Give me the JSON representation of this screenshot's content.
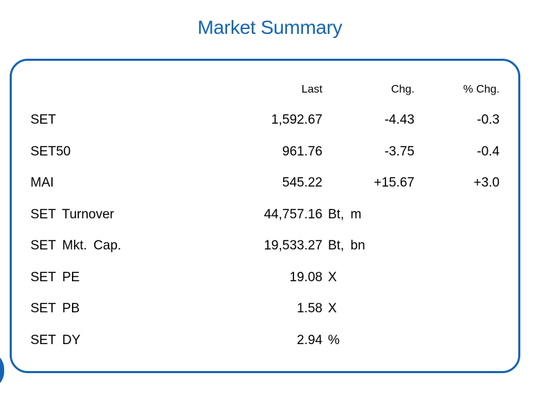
{
  "title": "Market Summary",
  "colors": {
    "accent": "#1565b0"
  },
  "table": {
    "headers": {
      "last": "Last",
      "chg": "Chg.",
      "pct_chg": "% Chg."
    },
    "index_rows": [
      {
        "label": "SET",
        "last": "1,592.67",
        "chg": "-4.43",
        "pct_chg": "-0.3"
      },
      {
        "label": "SET50",
        "last": "961.76",
        "chg": "-3.75",
        "pct_chg": "-0.4"
      },
      {
        "label": "MAI",
        "last": "545.22",
        "chg": "+15.67",
        "pct_chg": "+3.0"
      }
    ],
    "stat_rows": [
      {
        "label": "SET Turnover",
        "value": "44,757.16",
        "unit": "Bt, m"
      },
      {
        "label": "SET Mkt. Cap.",
        "value": "19,533.27",
        "unit": "Bt, bn"
      },
      {
        "label": "SET PE",
        "value": "19.08",
        "unit": "X"
      },
      {
        "label": "SET PB",
        "value": "1.58",
        "unit": "X"
      },
      {
        "label": "SET DY",
        "value": "2.94",
        "unit": "%"
      }
    ]
  }
}
